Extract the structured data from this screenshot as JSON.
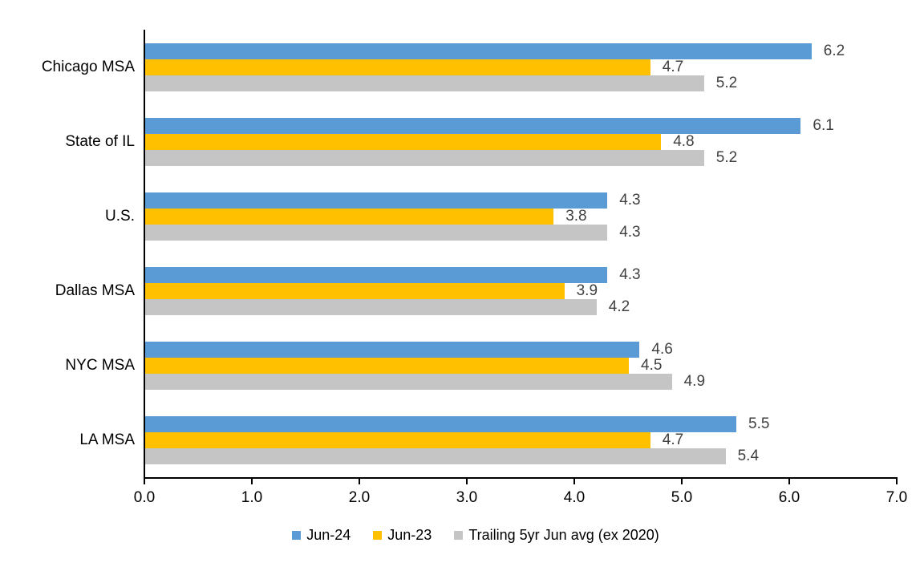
{
  "chart_data": {
    "type": "bar",
    "orientation": "horizontal",
    "title": "",
    "xlabel": "",
    "ylabel": "",
    "categories": [
      "Chicago MSA",
      "State of IL",
      "U.S.",
      "Dallas MSA",
      "NYC MSA",
      "LA MSA"
    ],
    "series": [
      {
        "name": "Jun-24",
        "color": "#5B9BD5",
        "values": [
          6.2,
          6.1,
          4.3,
          4.3,
          4.6,
          5.5
        ]
      },
      {
        "name": "Jun-23",
        "color": "#FFC000",
        "values": [
          4.7,
          4.8,
          3.8,
          3.9,
          4.5,
          4.7
        ]
      },
      {
        "name": "Trailing 5yr Jun avg (ex 2020)",
        "color": "#C5C5C5",
        "values": [
          5.2,
          5.2,
          4.3,
          4.2,
          4.9,
          5.4
        ]
      }
    ],
    "xlim": [
      0,
      7
    ],
    "x_ticks": [
      "0.0",
      "1.0",
      "2.0",
      "3.0",
      "4.0",
      "5.0",
      "6.0",
      "7.0"
    ],
    "grid": false,
    "data_labels": true,
    "data_label_color": "#404040",
    "axis_color": "#000000",
    "legend_position": "bottom"
  }
}
